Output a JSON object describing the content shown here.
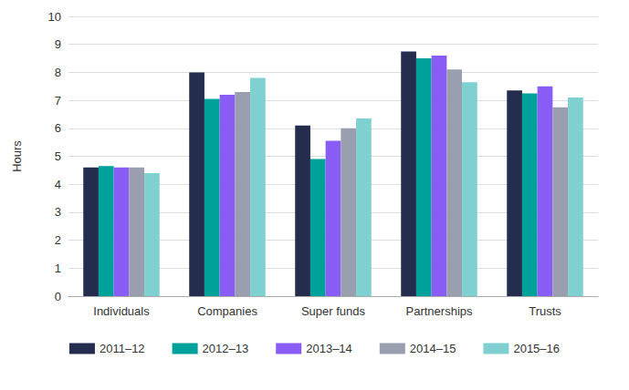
{
  "chart_data": {
    "type": "bar",
    "y_label": "Hours",
    "categories": [
      "Individuals",
      "Companies",
      "Super funds",
      "Partnerships",
      "Trusts"
    ],
    "series": [
      {
        "name": "2011–12",
        "color": "#252d4f",
        "values": [
          4.6,
          8.0,
          6.1,
          8.75,
          7.35
        ]
      },
      {
        "name": "2012–13",
        "color": "#00a19a",
        "values": [
          4.65,
          7.05,
          4.9,
          8.5,
          7.25
        ]
      },
      {
        "name": "2013–14",
        "color": "#8a5cf6",
        "values": [
          4.6,
          7.2,
          5.55,
          8.6,
          7.5
        ]
      },
      {
        "name": "2014–15",
        "color": "#9a9fb0",
        "values": [
          4.6,
          7.3,
          6.0,
          8.1,
          6.75
        ]
      },
      {
        "name": "2015–16",
        "color": "#7fd1d1",
        "values": [
          4.4,
          7.8,
          6.35,
          7.65,
          7.1
        ]
      }
    ],
    "ylim": [
      0,
      10
    ],
    "yticks": [
      0,
      1,
      2,
      3,
      4,
      5,
      6,
      7,
      8,
      9,
      10
    ],
    "grid": true,
    "legend": "bottom"
  }
}
